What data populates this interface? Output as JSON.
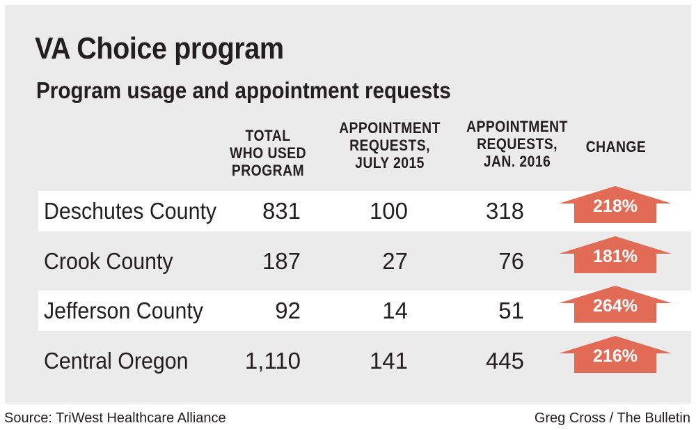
{
  "chart_data": {
    "type": "table",
    "title": "VA Choice program",
    "subtitle": "Program usage and appointment requests",
    "columns": [
      "TOTAL\nWHO USED\nPROGRAM",
      "APPOINTMENT\nREQUESTS,\nJULY 2015",
      "APPOINTMENT\nREQUESTS,\nJAN. 2016",
      "CHANGE"
    ],
    "rows": [
      {
        "label": "Deschutes County",
        "total": "831",
        "july2015": "100",
        "jan2016": "318",
        "change": "218%"
      },
      {
        "label": "Crook County",
        "total": "187",
        "july2015": "27",
        "jan2016": "76",
        "change": "181%"
      },
      {
        "label": "Jefferson County",
        "total": "92",
        "july2015": "14",
        "jan2016": "51",
        "change": "264%"
      },
      {
        "label": "Central Oregon",
        "total": "1,110",
        "july2015": "141",
        "jan2016": "445",
        "change": "216%"
      }
    ],
    "arrow_color": "#e26b55",
    "arrow_icon": "up-arrow-icon"
  },
  "footer": {
    "source": "Source: TriWest Healthcare Alliance",
    "credit": "Greg Cross / The Bulletin"
  }
}
